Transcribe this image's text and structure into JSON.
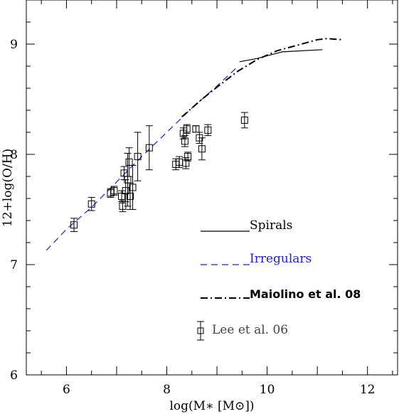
{
  "chart_data": {
    "type": "line",
    "xlabel": "log(M∗ [M⊙])",
    "ylabel": "12+log(O/H)",
    "xlim": [
      5.2,
      12.6
    ],
    "ylim": [
      6.0,
      9.4
    ],
    "x_ticks": [
      "6",
      "8",
      "10",
      "12"
    ],
    "y_ticks": [
      "6",
      "7",
      "8",
      "9"
    ],
    "grid": false,
    "legend_placement": "lower-right",
    "series": [
      {
        "name": "Spirals",
        "style": "solid",
        "color": "#000000",
        "x": [
          9.45,
          9.8,
          10.3,
          11.1
        ],
        "y": [
          8.84,
          8.87,
          8.93,
          8.95
        ]
      },
      {
        "name": "Irregulars",
        "style": "dashed",
        "color": "#1a1aff",
        "x": [
          5.6,
          6.0,
          6.5,
          7.0,
          7.5,
          8.0,
          8.5,
          9.0,
          9.4
        ],
        "y": [
          7.13,
          7.32,
          7.52,
          7.75,
          7.98,
          8.2,
          8.42,
          8.62,
          8.79
        ]
      },
      {
        "name": "Maiolino et al. 08",
        "style": "dash-dot",
        "color": "#000000",
        "x": [
          8.3,
          8.7,
          9.0,
          9.4,
          9.8,
          10.2,
          10.6,
          11.0,
          11.2,
          11.5
        ],
        "y": [
          8.34,
          8.5,
          8.61,
          8.75,
          8.86,
          8.94,
          8.99,
          9.04,
          9.05,
          9.04
        ]
      },
      {
        "name": "Lee et al. 06",
        "style": "markers",
        "color": "#000000",
        "points": [
          {
            "x": 6.15,
            "y": 7.36,
            "err": 0.06
          },
          {
            "x": 6.5,
            "y": 7.55,
            "err": 0.06
          },
          {
            "x": 6.88,
            "y": 7.65,
            "err": 0.04
          },
          {
            "x": 6.95,
            "y": 7.67,
            "err": 0.04
          },
          {
            "x": 7.1,
            "y": 7.62,
            "err": 0.05
          },
          {
            "x": 7.12,
            "y": 7.53,
            "err": 0.05
          },
          {
            "x": 7.15,
            "y": 7.83,
            "err": 0.06
          },
          {
            "x": 7.18,
            "y": 7.67,
            "err": 0.1
          },
          {
            "x": 7.22,
            "y": 7.77,
            "err": 0.24
          },
          {
            "x": 7.25,
            "y": 7.93,
            "err": 0.13
          },
          {
            "x": 7.27,
            "y": 7.62,
            "err": 0.12
          },
          {
            "x": 7.32,
            "y": 7.7,
            "err": 0.2
          },
          {
            "x": 7.42,
            "y": 7.98,
            "err": 0.22
          },
          {
            "x": 7.65,
            "y": 8.06,
            "err": 0.2
          },
          {
            "x": 8.18,
            "y": 7.91,
            "err": 0.05
          },
          {
            "x": 8.25,
            "y": 7.93,
            "err": 0.05
          },
          {
            "x": 8.33,
            "y": 8.19,
            "err": 0.05
          },
          {
            "x": 8.36,
            "y": 8.12,
            "err": 0.05
          },
          {
            "x": 8.38,
            "y": 7.92,
            "err": 0.05
          },
          {
            "x": 8.4,
            "y": 8.23,
            "err": 0.04
          },
          {
            "x": 8.42,
            "y": 7.98,
            "err": 0.04
          },
          {
            "x": 8.58,
            "y": 8.23,
            "err": 0.03
          },
          {
            "x": 8.65,
            "y": 8.15,
            "err": 0.05
          },
          {
            "x": 8.7,
            "y": 8.05,
            "err": 0.1
          },
          {
            "x": 8.82,
            "y": 8.22,
            "err": 0.05
          },
          {
            "x": 9.55,
            "y": 8.31,
            "err": 0.07
          }
        ]
      }
    ]
  }
}
